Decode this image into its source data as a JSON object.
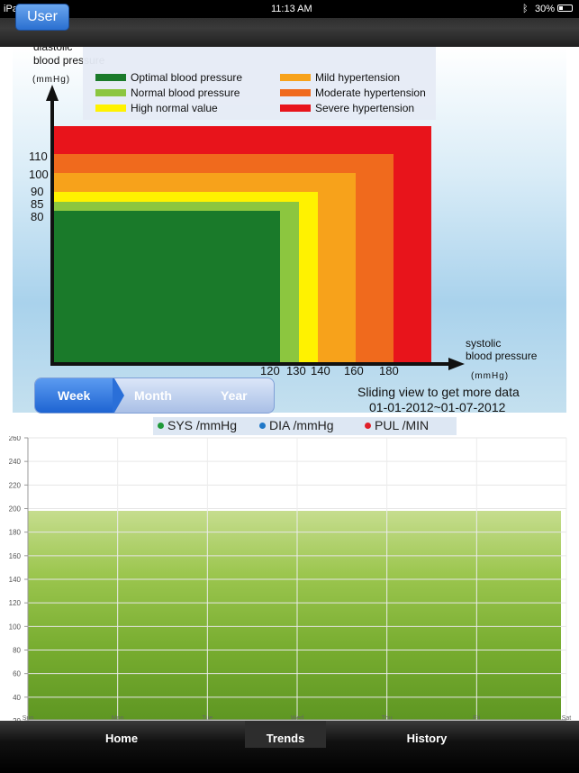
{
  "status_bar": {
    "device": "iPad",
    "time": "11:13 AM",
    "battery": "30%"
  },
  "header": {
    "user_button": "User"
  },
  "bp_chart": {
    "y_axis_label_line1": "diastolic",
    "y_axis_label_line2": "blood pressure",
    "y_unit": "(mmHg)",
    "x_axis_label_line1": "systolic",
    "x_axis_label_line2": "blood pressure",
    "x_unit": "(mmHg)",
    "y_ticks": [
      "110",
      "100",
      "90",
      "85",
      "80"
    ],
    "x_ticks": [
      "120",
      "130",
      "140",
      "160",
      "180"
    ],
    "legend": [
      {
        "label": "Optimal blood pressure",
        "color": "#1a7a2a"
      },
      {
        "label": "Normal blood pressure",
        "color": "#8cc63f"
      },
      {
        "label": "High normal value",
        "color": "#fff200"
      },
      {
        "label": "Mild hypertension",
        "color": "#f7a21b"
      },
      {
        "label": "Moderate hypertension",
        "color": "#f06a1d"
      },
      {
        "label": "Severe hypertension",
        "color": "#e8141b"
      }
    ]
  },
  "period_tabs": {
    "week": "Week",
    "month": "Month",
    "year": "Year",
    "selected": "Week"
  },
  "slide_hint": {
    "line1": "Sliding view to get more data",
    "line2": "01-01-2012~01-07-2012"
  },
  "series_legend": [
    {
      "label": "SYS /mmHg",
      "color": "#1f9a3a"
    },
    {
      "label": "DIA /mmHg",
      "color": "#1f78c8"
    },
    {
      "label": "PUL /MIN",
      "color": "#e0202a"
    }
  ],
  "chart_data": {
    "type": "line",
    "categories": [
      "Sun",
      "Mon",
      "Tue",
      "Wed",
      "Thu",
      "Fri",
      "Sat"
    ],
    "y_ticks": [
      "20",
      "40",
      "60",
      "80",
      "100",
      "120",
      "140",
      "160",
      "180",
      "200",
      "220",
      "240",
      "260"
    ],
    "ylim": [
      20,
      260
    ],
    "grid": true,
    "series": []
  },
  "tab_bar": {
    "home": "Home",
    "trends": "Trends",
    "history": "History",
    "selected": "Trends"
  }
}
